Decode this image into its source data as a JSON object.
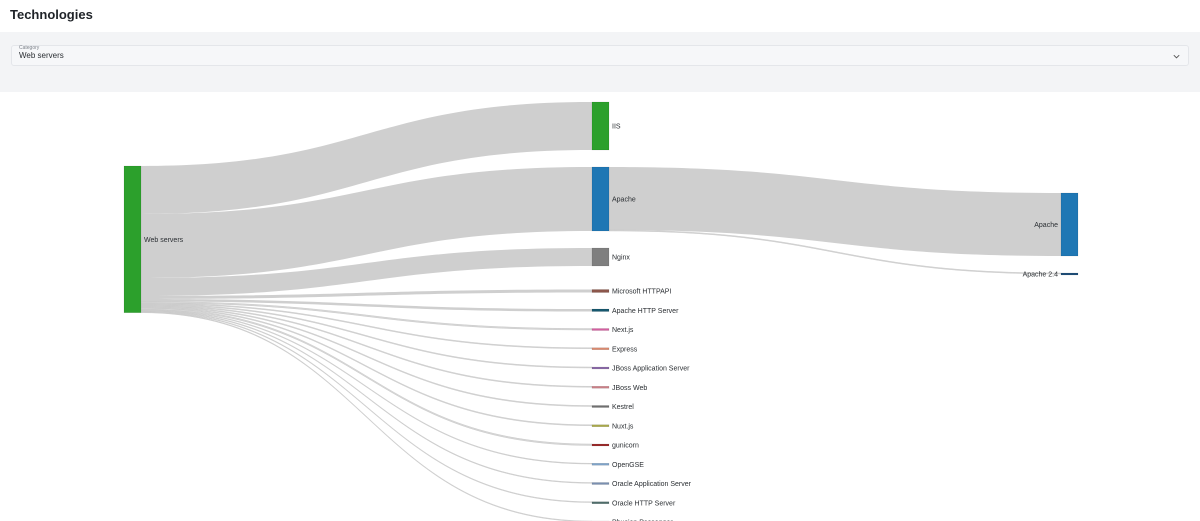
{
  "page": {
    "title": "Technologies"
  },
  "filter": {
    "label": "Category",
    "selected": "Web servers",
    "chevron_icon": "chevron-down-icon"
  },
  "chart_data": {
    "type": "sankey",
    "link_color": "#cfcfcf",
    "nodes": [
      {
        "id": "web-servers",
        "name": "Web servers",
        "column": 0,
        "color": "#2ca02c"
      },
      {
        "id": "iis",
        "name": "IIS",
        "column": 1,
        "color": "#2ca02c"
      },
      {
        "id": "apache",
        "name": "Apache",
        "column": 1,
        "color": "#1f77b4"
      },
      {
        "id": "nginx",
        "name": "Nginx",
        "column": 1,
        "color": "#7f7f7f"
      },
      {
        "id": "microsoft-httpapi",
        "name": "Microsoft HTTPAPI",
        "column": 1,
        "color": "#8c564b"
      },
      {
        "id": "apache-http-server",
        "name": "Apache HTTP Server",
        "column": 1,
        "color": "#17586f"
      },
      {
        "id": "nextjs",
        "name": "Next.js",
        "column": 1,
        "color": "#d45fa0"
      },
      {
        "id": "express",
        "name": "Express",
        "column": 1,
        "color": "#d9886e"
      },
      {
        "id": "jboss-application-server",
        "name": "JBoss Application Server",
        "column": 1,
        "color": "#8b6ba8"
      },
      {
        "id": "jboss-web",
        "name": "JBoss Web",
        "column": 1,
        "color": "#c97f86"
      },
      {
        "id": "kestrel",
        "name": "Kestrel",
        "column": 1,
        "color": "#6f6f6f"
      },
      {
        "id": "nuxtjs",
        "name": "Nuxt.js",
        "column": 1,
        "color": "#a8a84a"
      },
      {
        "id": "gunicorn",
        "name": "gunicorn",
        "column": 1,
        "color": "#9b2c2c"
      },
      {
        "id": "opengse",
        "name": "OpenGSE",
        "column": 1,
        "color": "#7fa3c8"
      },
      {
        "id": "oracle-application-server",
        "name": "Oracle Application Server",
        "column": 1,
        "color": "#7a8fb0"
      },
      {
        "id": "oracle-http-server",
        "name": "Oracle HTTP Server",
        "column": 1,
        "color": "#4f6d6a"
      },
      {
        "id": "phusion-passenger",
        "name": "Phusion Passenger",
        "column": 1,
        "color": "#b8925a"
      },
      {
        "id": "apache-2",
        "name": "Apache",
        "column": 2,
        "color": "#1f77b4"
      },
      {
        "id": "apache-24",
        "name": "Apache 2.4",
        "column": 2,
        "color": "#1f4e79"
      }
    ],
    "links": [
      {
        "source": "web-servers",
        "target": "iis",
        "value": 48
      },
      {
        "source": "web-servers",
        "target": "apache",
        "value": 64
      },
      {
        "source": "web-servers",
        "target": "nginx",
        "value": 18
      },
      {
        "source": "web-servers",
        "target": "microsoft-httpapi",
        "value": 3
      },
      {
        "source": "web-servers",
        "target": "apache-http-server",
        "value": 2.5
      },
      {
        "source": "web-servers",
        "target": "nextjs",
        "value": 1.5
      },
      {
        "source": "web-servers",
        "target": "express",
        "value": 1
      },
      {
        "source": "web-servers",
        "target": "jboss-application-server",
        "value": 1
      },
      {
        "source": "web-servers",
        "target": "jboss-web",
        "value": 1
      },
      {
        "source": "web-servers",
        "target": "kestrel",
        "value": 1
      },
      {
        "source": "web-servers",
        "target": "nuxtjs",
        "value": 1
      },
      {
        "source": "web-servers",
        "target": "gunicorn",
        "value": 1.5
      },
      {
        "source": "web-servers",
        "target": "opengse",
        "value": 0.8
      },
      {
        "source": "web-servers",
        "target": "oracle-application-server",
        "value": 0.8
      },
      {
        "source": "web-servers",
        "target": "oracle-http-server",
        "value": 0.8
      },
      {
        "source": "web-servers",
        "target": "phusion-passenger",
        "value": 0.8
      },
      {
        "source": "apache",
        "target": "apache-2",
        "value": 63
      },
      {
        "source": "apache",
        "target": "apache-24",
        "value": 1
      }
    ]
  }
}
